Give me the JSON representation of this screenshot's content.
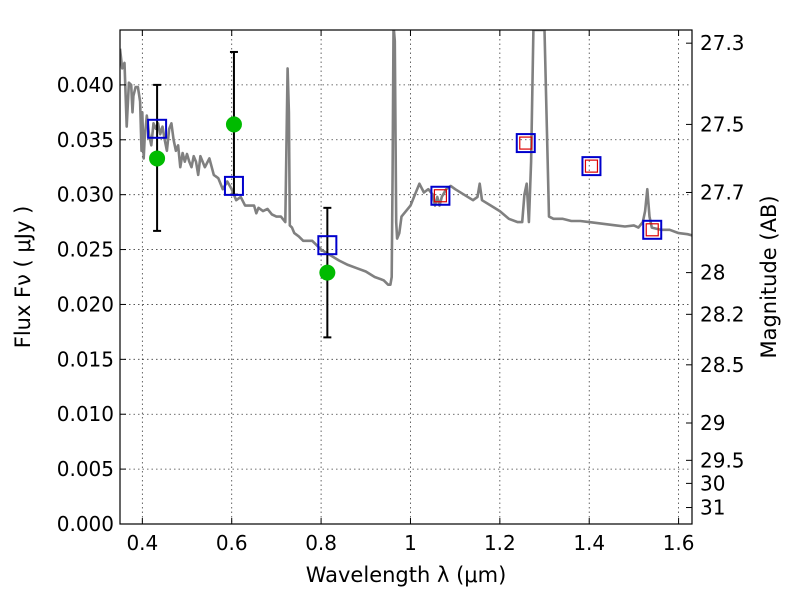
{
  "chart_data": {
    "type": "scatter",
    "title": "",
    "xlabel": "Wavelength  λ (μm)",
    "ylabel": "Flux  Fν  ( μJy )",
    "y2label": "Magnitude (AB)",
    "xlim": [
      0.35,
      1.63
    ],
    "ylim": [
      0.0,
      0.045
    ],
    "grid": true,
    "x_ticks": [
      0.4,
      0.6,
      0.8,
      1.0,
      1.2,
      1.4,
      1.6
    ],
    "x_tick_labels": [
      "0.4",
      "0.6",
      "0.8",
      "1",
      "1.2",
      "1.4",
      "1.6"
    ],
    "y_ticks": [
      0.0,
      0.005,
      0.01,
      0.015,
      0.02,
      0.025,
      0.03,
      0.035,
      0.04
    ],
    "y_tick_labels": [
      "0.000",
      "0.005",
      "0.010",
      "0.015",
      "0.020",
      "0.025",
      "0.030",
      "0.035",
      "0.040"
    ],
    "y2_ticks": [
      {
        "label": "27.3",
        "flux": 0.0438
      },
      {
        "label": "27.5",
        "flux": 0.0364
      },
      {
        "label": "27.7",
        "flux": 0.0302
      },
      {
        "label": "28",
        "flux": 0.0229
      },
      {
        "label": "28.2",
        "flux": 0.0191
      },
      {
        "label": "28.5",
        "flux": 0.0145
      },
      {
        "label": "29",
        "flux": 0.0092
      },
      {
        "label": "29.5",
        "flux": 0.0058
      },
      {
        "label": "30",
        "flux": 0.0037
      },
      {
        "label": "31",
        "flux": 0.0015
      }
    ],
    "series": [
      {
        "kind": "line",
        "color": "#808080",
        "x": [
          0.35,
          0.355,
          0.36,
          0.365,
          0.37,
          0.375,
          0.378,
          0.38,
          0.385,
          0.39,
          0.395,
          0.398,
          0.4,
          0.403,
          0.405,
          0.41,
          0.415,
          0.42,
          0.425,
          0.43,
          0.435,
          0.44,
          0.445,
          0.45,
          0.455,
          0.46,
          0.465,
          0.47,
          0.475,
          0.48,
          0.485,
          0.49,
          0.495,
          0.5,
          0.505,
          0.51,
          0.515,
          0.52,
          0.525,
          0.53,
          0.54,
          0.55,
          0.56,
          0.57,
          0.58,
          0.59,
          0.6,
          0.61,
          0.62,
          0.63,
          0.64,
          0.65,
          0.655,
          0.66,
          0.67,
          0.68,
          0.69,
          0.7,
          0.71,
          0.72,
          0.725,
          0.728,
          0.73,
          0.735,
          0.74,
          0.75,
          0.76,
          0.78,
          0.8,
          0.82,
          0.84,
          0.86,
          0.88,
          0.9,
          0.92,
          0.94,
          0.95,
          0.955,
          0.958,
          0.96,
          0.962,
          0.963,
          0.965,
          0.968,
          0.97,
          0.975,
          0.98,
          0.99,
          1.0,
          1.01,
          1.02,
          1.03,
          1.04,
          1.05,
          1.055,
          1.06,
          1.065,
          1.07,
          1.08,
          1.09,
          1.1,
          1.12,
          1.14,
          1.15,
          1.155,
          1.16,
          1.18,
          1.2,
          1.22,
          1.24,
          1.25,
          1.255,
          1.26,
          1.265,
          1.27,
          1.275,
          1.28,
          1.285,
          1.29,
          1.295,
          1.3,
          1.31,
          1.32,
          1.34,
          1.36,
          1.38,
          1.4,
          1.42,
          1.44,
          1.46,
          1.48,
          1.5,
          1.51,
          1.52,
          1.525,
          1.53,
          1.535,
          1.54,
          1.56,
          1.58,
          1.6,
          1.62,
          1.63
        ],
        "y": [
          0.0433,
          0.0415,
          0.042,
          0.0362,
          0.0402,
          0.04,
          0.0375,
          0.039,
          0.0398,
          0.0398,
          0.0385,
          0.034,
          0.0375,
          0.0333,
          0.035,
          0.0372,
          0.0355,
          0.0345,
          0.0365,
          0.036,
          0.0365,
          0.0355,
          0.0362,
          0.035,
          0.034,
          0.036,
          0.0365,
          0.035,
          0.034,
          0.0345,
          0.0325,
          0.0338,
          0.033,
          0.0337,
          0.033,
          0.0325,
          0.0335,
          0.033,
          0.0318,
          0.0335,
          0.0325,
          0.0333,
          0.0318,
          0.0315,
          0.0305,
          0.0312,
          0.0305,
          0.0295,
          0.0298,
          0.029,
          0.029,
          0.029,
          0.0283,
          0.0288,
          0.0285,
          0.0287,
          0.0282,
          0.028,
          0.028,
          0.0275,
          0.0415,
          0.0375,
          0.0272,
          0.027,
          0.0265,
          0.0262,
          0.0258,
          0.0258,
          0.025,
          0.0245,
          0.024,
          0.0236,
          0.0233,
          0.023,
          0.0225,
          0.0222,
          0.0218,
          0.0218,
          0.0225,
          0.032,
          0.045,
          0.045,
          0.044,
          0.0275,
          0.026,
          0.0265,
          0.028,
          0.0285,
          0.029,
          0.03,
          0.031,
          0.0302,
          0.0305,
          0.03,
          0.029,
          0.0298,
          0.029,
          0.0298,
          0.0305,
          0.0308,
          0.0305,
          0.03,
          0.0295,
          0.0298,
          0.031,
          0.0295,
          0.029,
          0.0285,
          0.0278,
          0.0275,
          0.0275,
          0.03,
          0.031,
          0.0275,
          0.033,
          0.045,
          0.045,
          0.045,
          0.045,
          0.045,
          0.045,
          0.028,
          0.0278,
          0.0278,
          0.0276,
          0.0276,
          0.0275,
          0.0274,
          0.0273,
          0.0272,
          0.0271,
          0.0272,
          0.027,
          0.0275,
          0.0285,
          0.0305,
          0.028,
          0.027,
          0.0268,
          0.0268,
          0.0265,
          0.0264,
          0.0263
        ]
      },
      {
        "kind": "squares",
        "edge": "#0000cc",
        "x": [
          0.433,
          0.605,
          0.814,
          1.067,
          1.258,
          1.405,
          1.541
        ],
        "y": [
          0.036,
          0.0308,
          0.0254,
          0.0299,
          0.0347,
          0.0326,
          0.0268
        ]
      },
      {
        "kind": "small-squares",
        "edge": "#dd0000",
        "x": [
          1.067,
          1.258,
          1.405,
          1.541
        ],
        "y": [
          0.0299,
          0.0347,
          0.0326,
          0.0268
        ]
      },
      {
        "kind": "points",
        "color": "#00bb00",
        "x": [
          0.433,
          0.605,
          0.814
        ],
        "y": [
          0.0333,
          0.0364,
          0.0229
        ],
        "yerr_low": [
          0.0267,
          0.03,
          0.017
        ],
        "yerr_high": [
          0.04,
          0.043,
          0.0288
        ]
      }
    ]
  }
}
